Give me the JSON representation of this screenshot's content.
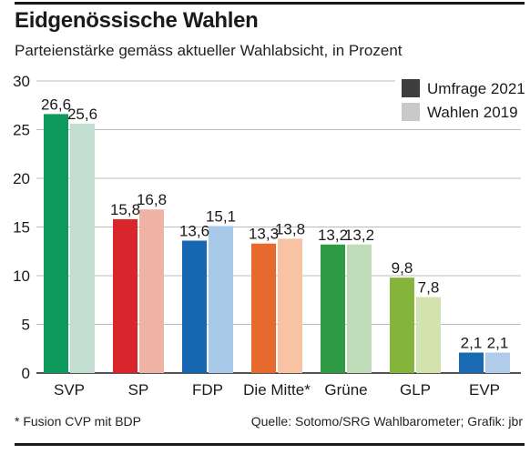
{
  "title": "Eidgenössische Wahlen",
  "subtitle": "Parteienstärke gemäss aktueller Wahlabsicht, in Prozent",
  "footnote": "* Fusion CVP mit BDP",
  "source": "Quelle: Sotomo/SRG Wahlbarometer; Grafik: jbr",
  "chart_data": {
    "type": "bar",
    "title": "Eidgenössische Wahlen",
    "subtitle": "Parteienstärke gemäss aktueller Wahlabsicht, in Prozent",
    "categories": [
      "SVP",
      "SP",
      "FDP",
      "Die Mitte*",
      "Grüne",
      "GLP",
      "EVP"
    ],
    "series": [
      {
        "name": "Umfrage 2021",
        "values": [
          26.6,
          15.8,
          13.6,
          13.3,
          13.2,
          9.8,
          2.1
        ],
        "labels": [
          "26,6",
          "15,8",
          "13,6",
          "13,3",
          "13,2",
          "9,8",
          "2,1"
        ]
      },
      {
        "name": "Wahlen 2019",
        "values": [
          25.6,
          16.8,
          15.1,
          13.8,
          13.2,
          7.8,
          2.1
        ],
        "labels": [
          "25,6",
          "16,8",
          "15,1",
          "13,8",
          "13,2",
          "7,8",
          "2,1"
        ]
      }
    ],
    "colors_2021": [
      "#0e9a5c",
      "#d9262c",
      "#1467b0",
      "#e8692d",
      "#2f9a44",
      "#84b43c",
      "#1a69b3"
    ],
    "colors_2019": [
      "#c2ded0",
      "#eeb3a5",
      "#a8c9e8",
      "#f7c3a2",
      "#bfdcb8",
      "#d2e3ad",
      "#b1cbea"
    ],
    "legend_colors": [
      "#3d3d3d",
      "#c9c9c9"
    ],
    "yticks": [
      0,
      5,
      10,
      15,
      20,
      25,
      30
    ],
    "ylim": [
      0,
      30
    ],
    "xlabel": "",
    "ylabel": "",
    "grid": true,
    "legend": "top-right"
  }
}
